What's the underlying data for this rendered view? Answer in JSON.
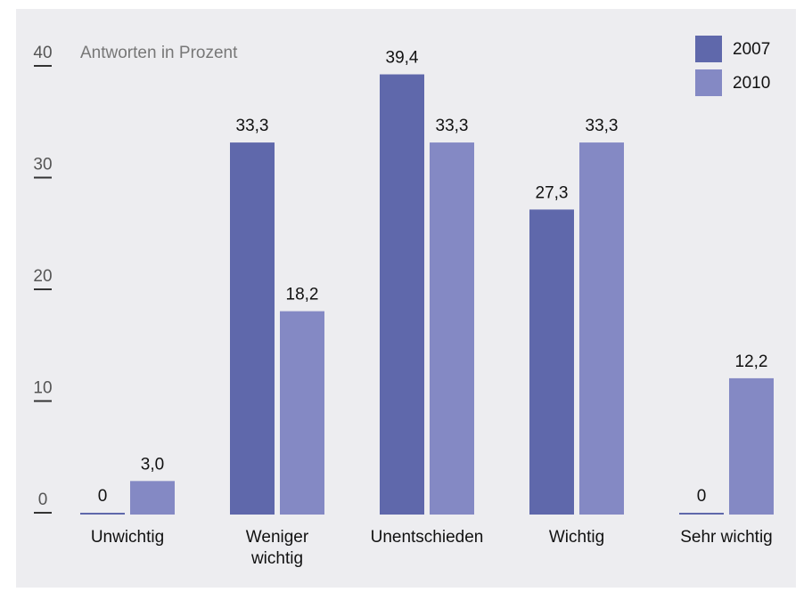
{
  "chart_data": {
    "type": "bar",
    "ylabel": "Antworten in Prozent",
    "categories": [
      "Unwichtig",
      "Weniger\nwichtig",
      "Unentschieden",
      "Wichtig",
      "Sehr wichtig"
    ],
    "series": [
      {
        "name": "2007",
        "color": "#5f68ab",
        "values": [
          0,
          33.3,
          39.4,
          27.3,
          0
        ],
        "value_labels": [
          "0",
          "33,3",
          "39,4",
          "27,3",
          "0"
        ]
      },
      {
        "name": "2010",
        "color": "#8489c4",
        "values": [
          3,
          18.2,
          33.3,
          33.3,
          12.2
        ],
        "value_labels": [
          "3,0",
          "18,2",
          "33,3",
          "33,3",
          "12,2"
        ]
      }
    ],
    "ylim": [
      0,
      40
    ],
    "yticks": [
      0,
      10,
      20,
      30,
      40
    ],
    "legend": "upper right"
  }
}
